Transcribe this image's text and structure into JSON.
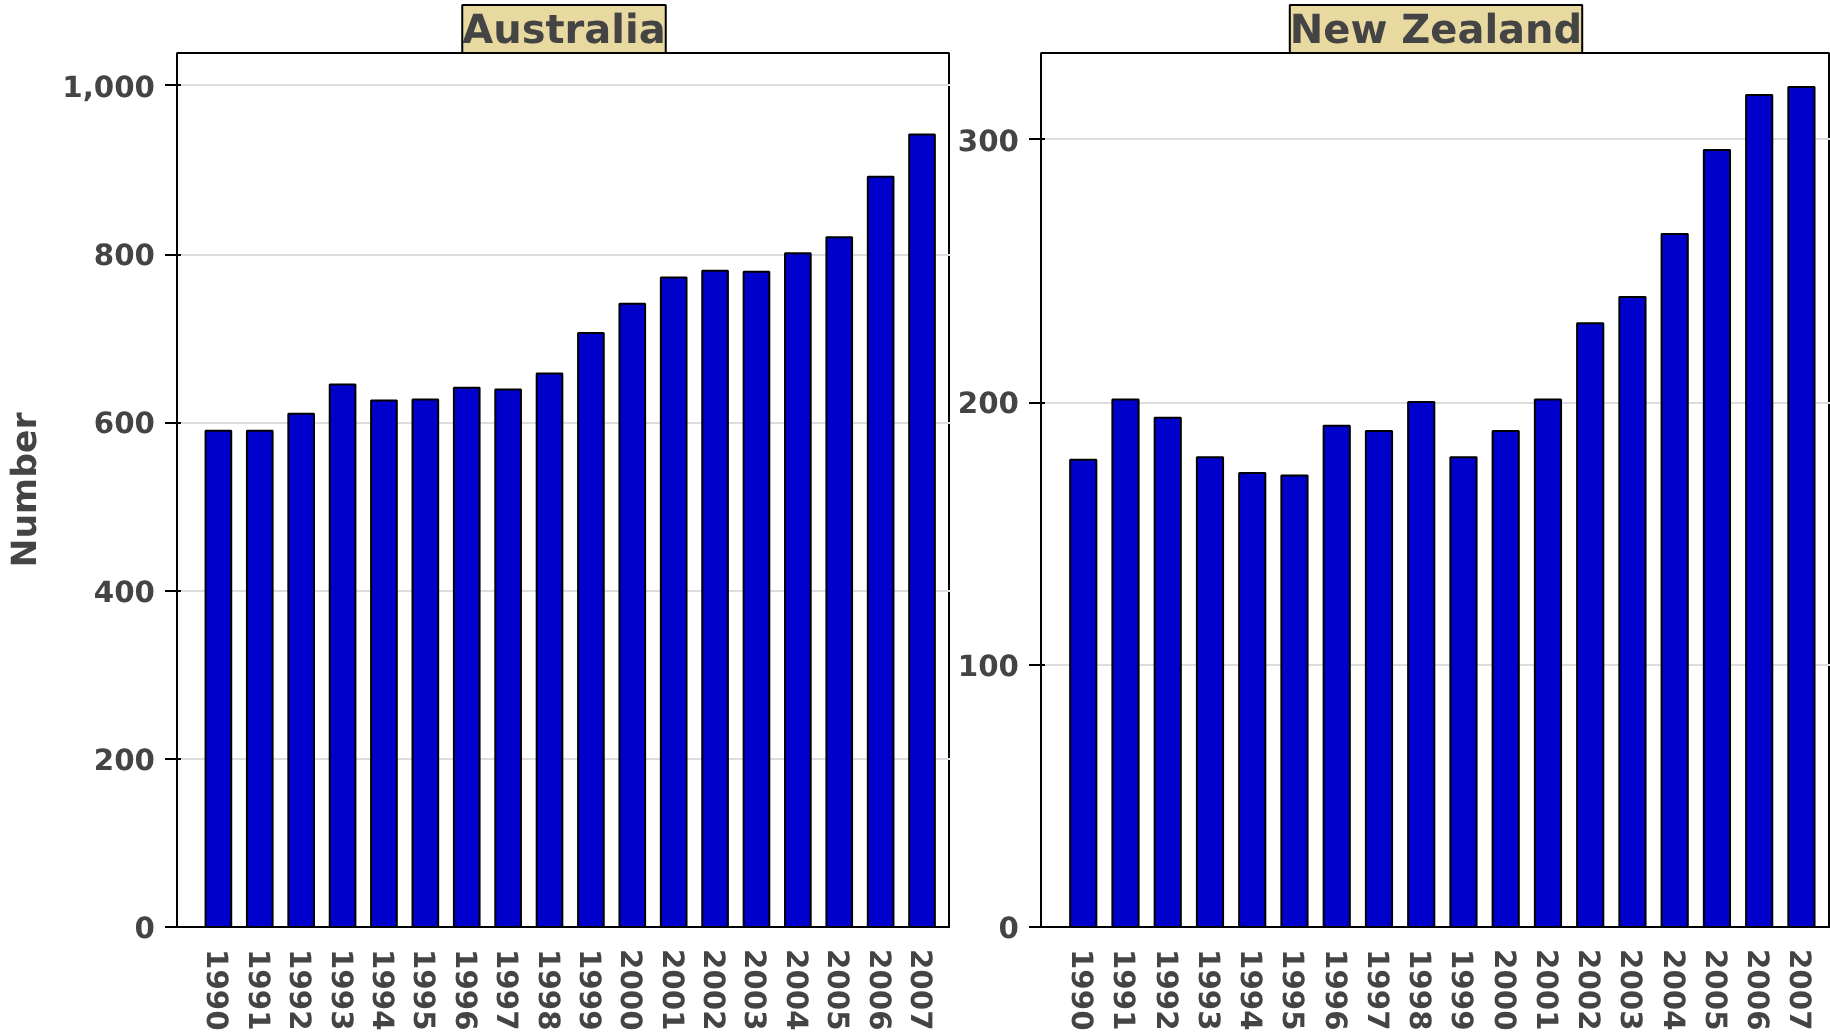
{
  "chart_data": [
    {
      "type": "bar",
      "title": "Australia",
      "ylabel": "Number",
      "categories": [
        "1990",
        "1991",
        "1992",
        "1993",
        "1994",
        "1995",
        "1996",
        "1997",
        "1998",
        "1999",
        "2000",
        "2001",
        "2002",
        "2003",
        "2004",
        "2005",
        "2006",
        "2007"
      ],
      "values": [
        590,
        590,
        610,
        645,
        626,
        627,
        641,
        639,
        658,
        706,
        741,
        772,
        780,
        779,
        801,
        820,
        892,
        942
      ],
      "color": "#0000cc",
      "ylim": [
        0,
        1039
      ],
      "yticks": [
        0,
        200,
        400,
        600,
        800,
        {
          "value": 1000,
          "label": "1,000"
        }
      ],
      "grid": "y"
    },
    {
      "type": "bar",
      "title": "New Zealand",
      "categories": [
        "1990",
        "1991",
        "1992",
        "1993",
        "1994",
        "1995",
        "1996",
        "1997",
        "1998",
        "1999",
        "2000",
        "2001",
        "2002",
        "2003",
        "2004",
        "2005",
        "2006",
        "2007"
      ],
      "values": [
        178,
        201,
        194,
        179,
        173,
        172,
        191,
        189,
        200,
        179,
        189,
        201,
        230,
        240,
        264,
        296,
        317,
        320
      ],
      "color": "#0000cc",
      "ylim": [
        0,
        333
      ],
      "yticks": [
        0,
        100,
        200,
        300
      ],
      "grid": "y"
    }
  ]
}
